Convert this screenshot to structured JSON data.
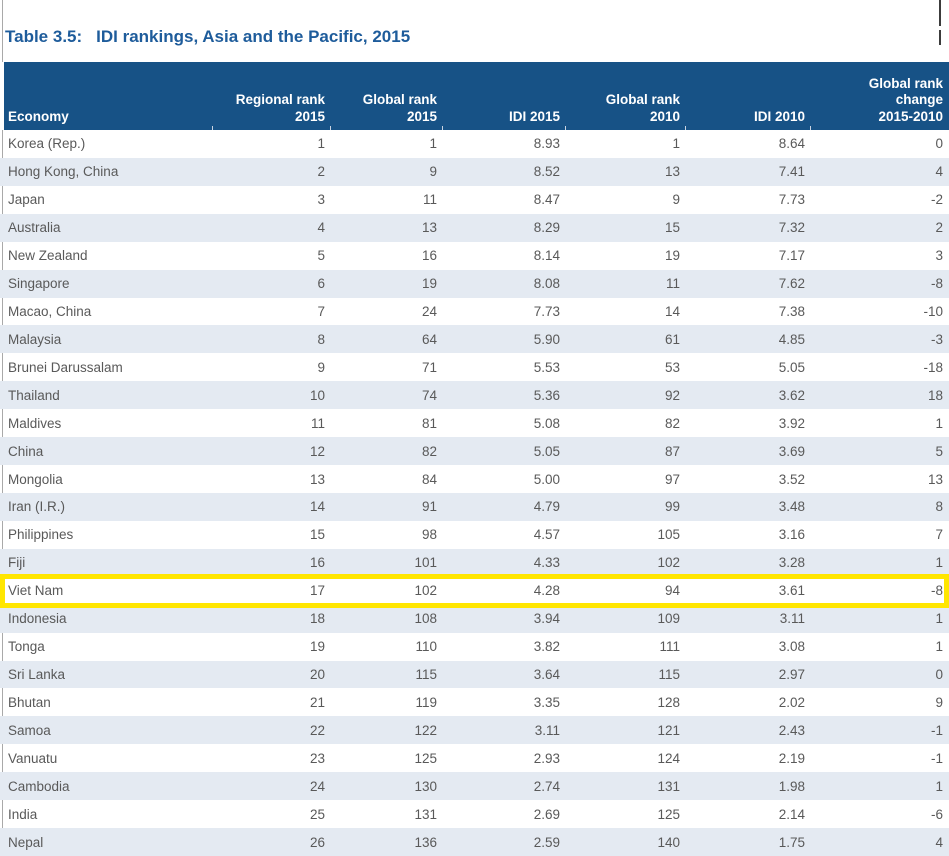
{
  "title": {
    "label": "Table 3.5:",
    "text": "IDI rankings, Asia and the Pacific, 2015"
  },
  "table": {
    "headers": [
      "Economy",
      "Regional rank\n2015",
      "Global rank\n2015",
      "IDI 2015",
      "Global rank\n2010",
      "IDI 2010",
      "Global rank\nchange\n2015-2010"
    ],
    "rows": [
      [
        "Korea (Rep.)",
        "1",
        "1",
        "8.93",
        "1",
        "8.64",
        "0"
      ],
      [
        "Hong Kong, China",
        "2",
        "9",
        "8.52",
        "13",
        "7.41",
        "4"
      ],
      [
        "Japan",
        "3",
        "11",
        "8.47",
        "9",
        "7.73",
        "-2"
      ],
      [
        "Australia",
        "4",
        "13",
        "8.29",
        "15",
        "7.32",
        "2"
      ],
      [
        "New Zealand",
        "5",
        "16",
        "8.14",
        "19",
        "7.17",
        "3"
      ],
      [
        "Singapore",
        "6",
        "19",
        "8.08",
        "11",
        "7.62",
        "-8"
      ],
      [
        "Macao, China",
        "7",
        "24",
        "7.73",
        "14",
        "7.38",
        "-10"
      ],
      [
        "Malaysia",
        "8",
        "64",
        "5.90",
        "61",
        "4.85",
        "-3"
      ],
      [
        "Brunei Darussalam",
        "9",
        "71",
        "5.53",
        "53",
        "5.05",
        "-18"
      ],
      [
        "Thailand",
        "10",
        "74",
        "5.36",
        "92",
        "3.62",
        "18"
      ],
      [
        "Maldives",
        "11",
        "81",
        "5.08",
        "82",
        "3.92",
        "1"
      ],
      [
        "China",
        "12",
        "82",
        "5.05",
        "87",
        "3.69",
        "5"
      ],
      [
        "Mongolia",
        "13",
        "84",
        "5.00",
        "97",
        "3.52",
        "13"
      ],
      [
        "Iran (I.R.)",
        "14",
        "91",
        "4.79",
        "99",
        "3.48",
        "8"
      ],
      [
        "Philippines",
        "15",
        "98",
        "4.57",
        "105",
        "3.16",
        "7"
      ],
      [
        "Fiji",
        "16",
        "101",
        "4.33",
        "102",
        "3.28",
        "1"
      ],
      [
        "Viet Nam",
        "17",
        "102",
        "4.28",
        "94",
        "3.61",
        "-8"
      ],
      [
        "Indonesia",
        "18",
        "108",
        "3.94",
        "109",
        "3.11",
        "1"
      ],
      [
        "Tonga",
        "19",
        "110",
        "3.82",
        "111",
        "3.08",
        "1"
      ],
      [
        "Sri Lanka",
        "20",
        "115",
        "3.64",
        "115",
        "2.97",
        "0"
      ],
      [
        "Bhutan",
        "21",
        "119",
        "3.35",
        "128",
        "2.02",
        "9"
      ],
      [
        "Samoa",
        "22",
        "122",
        "3.11",
        "121",
        "2.43",
        "-1"
      ],
      [
        "Vanuatu",
        "23",
        "125",
        "2.93",
        "124",
        "2.19",
        "-1"
      ],
      [
        "Cambodia",
        "24",
        "130",
        "2.74",
        "131",
        "1.98",
        "1"
      ],
      [
        "India",
        "25",
        "131",
        "2.69",
        "125",
        "2.14",
        "-6"
      ],
      [
        "Nepal",
        "26",
        "136",
        "2.59",
        "140",
        "1.75",
        "4"
      ]
    ],
    "highlight": {
      "economy": "Viet Nam",
      "border_color": "#ffe600"
    }
  },
  "colors": {
    "title_text": "#1e5c9b",
    "header_bg": "#175286",
    "header_text": "#ffffff",
    "row_alt_bg": "#e4eaf2",
    "cell_text": "#595959",
    "highlight_border": "#ffe600"
  }
}
